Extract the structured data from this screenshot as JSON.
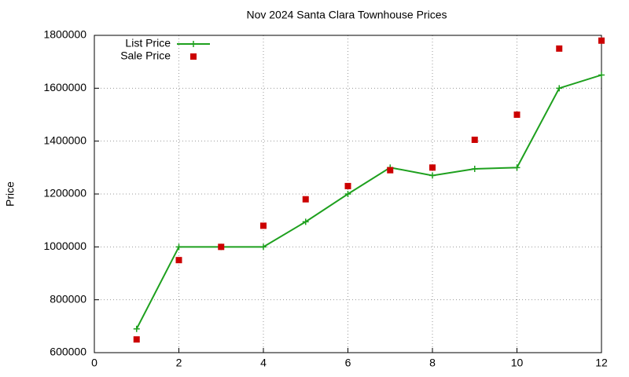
{
  "chart_data": {
    "type": "line",
    "title": "Nov 2024 Santa Clara Townhouse Prices",
    "y_label": "Price",
    "x": [
      1,
      2,
      3,
      4,
      5,
      6,
      7,
      8,
      9,
      10,
      11,
      12
    ],
    "series": [
      {
        "name": "List Price",
        "color": "#1ea01e",
        "marker": "plus",
        "line": true,
        "values": [
          690000,
          1000000,
          1000000,
          1000000,
          1095000,
          1200000,
          1300000,
          1270000,
          1295000,
          1300000,
          1600000,
          1650000
        ]
      },
      {
        "name": "Sale Price",
        "color": "#cc0000",
        "marker": "square",
        "line": false,
        "values": [
          650000,
          950000,
          1000000,
          1080000,
          1180000,
          1230000,
          1290000,
          1300000,
          1405000,
          1500000,
          1750000,
          1780000
        ]
      }
    ],
    "xlim": [
      0,
      12
    ],
    "xticks": [
      0,
      2,
      4,
      6,
      8,
      10,
      12
    ],
    "ylim": [
      600000,
      1800000
    ],
    "yticks": [
      600000,
      800000,
      1000000,
      1200000,
      1400000,
      1600000,
      1800000
    ],
    "grid": true,
    "legend": "top-left"
  }
}
